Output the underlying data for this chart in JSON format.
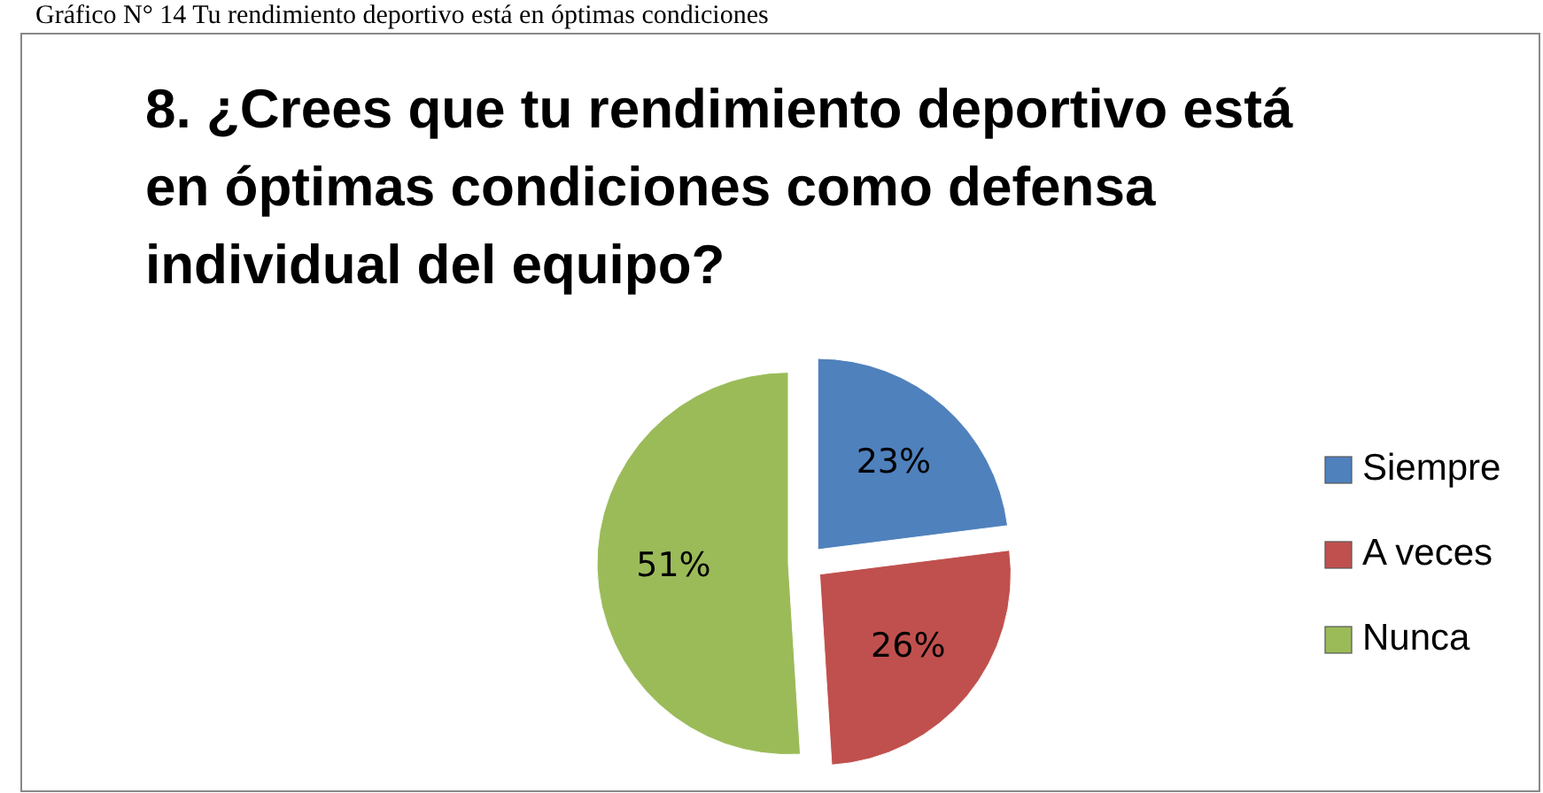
{
  "chart_data": {
    "type": "pie",
    "title": "8. ¿Crees que tu rendimiento deportivo está en óptimas condiciones como defensa individual del equipo?",
    "annotations": [
      "Gráfico N° 14 Tu rendimiento deportivo está en óptimas condiciones"
    ],
    "categories": [
      "Siempre",
      "A veces",
      "Nunca"
    ],
    "values": [
      23,
      26,
      51
    ],
    "colors": [
      "#4f81bd",
      "#c0504d",
      "#9bbb59"
    ],
    "value_labels": [
      "23%",
      "26%",
      "51%"
    ],
    "legend": "right"
  }
}
